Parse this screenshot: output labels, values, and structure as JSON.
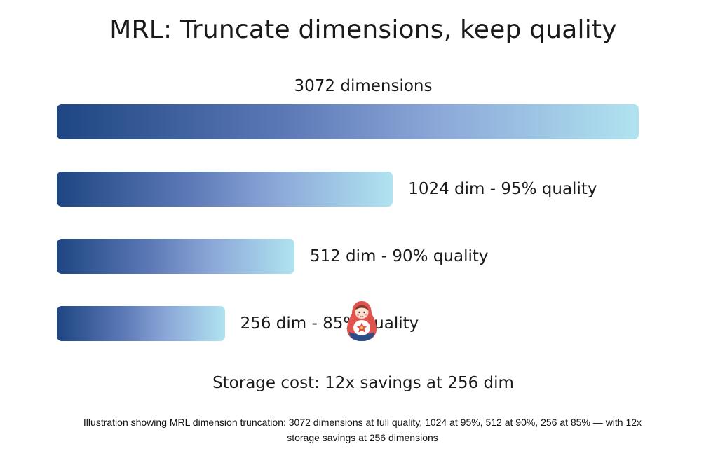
{
  "chart_data": {
    "type": "bar",
    "title": "MRL: Truncate dimensions, keep quality",
    "orientation": "horizontal",
    "categories": [
      "3072 dimensions",
      "1024 dim - 95% quality",
      "512 dim - 90% quality",
      "256 dim - 85% quality"
    ],
    "values": [
      3072,
      1024,
      512,
      256
    ],
    "quality": [
      "",
      "95%",
      "90%",
      "85%"
    ],
    "footer": "Storage cost: 12x savings at 256 dim",
    "colors": [
      "#1e4682",
      "#5d7ab7",
      "#8ba7d8",
      "#b0e3f0"
    ],
    "icons": [
      "matryoshka-doll-icon"
    ]
  },
  "caption": {
    "line1": "Illustration showing MRL dimension truncation: 3072 dimensions at full quality, 1024 at 95%, 512 at 90%, 256 at 85% — with 12x",
    "line2": "storage savings at 256 dimensions"
  }
}
